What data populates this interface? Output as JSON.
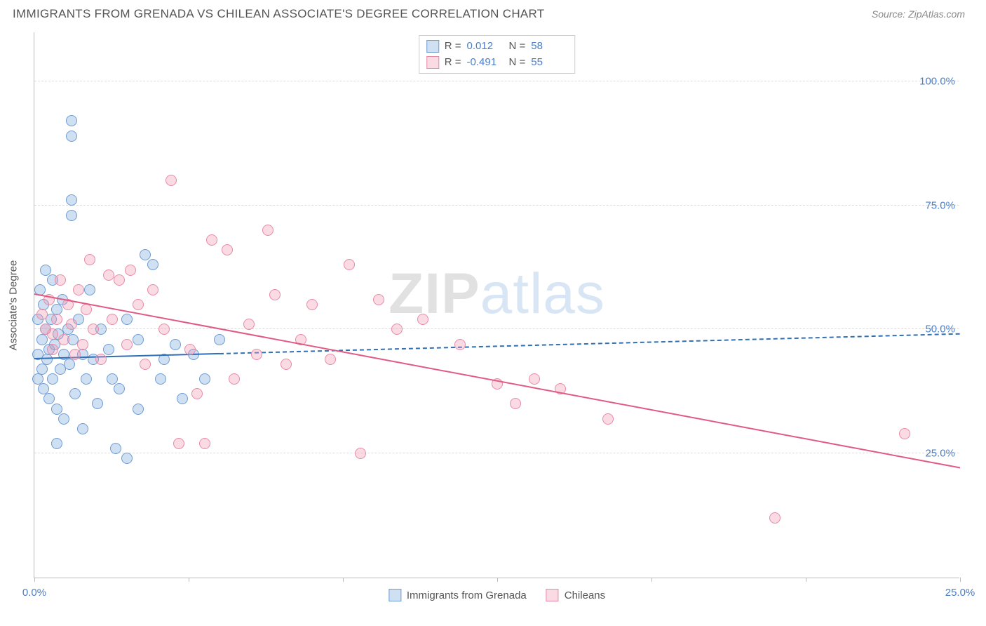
{
  "header": {
    "title": "IMMIGRANTS FROM GRENADA VS CHILEAN ASSOCIATE'S DEGREE CORRELATION CHART",
    "source_label": "Source: ZipAtlas.com"
  },
  "chart": {
    "type": "scatter",
    "y_axis_label": "Associate's Degree",
    "xlim": [
      0,
      25
    ],
    "ylim": [
      0,
      110
    ],
    "x_ticks": [
      0,
      4.17,
      8.33,
      12.5,
      16.67,
      20.83,
      25
    ],
    "x_tick_labels": {
      "0": "0.0%",
      "25": "25.0%"
    },
    "y_ticks": [
      25,
      50,
      75,
      100
    ],
    "y_tick_labels": {
      "25": "25.0%",
      "50": "50.0%",
      "75": "75.0%",
      "100": "100.0%"
    },
    "background_color": "#ffffff",
    "grid_color": "#dddddd",
    "axis_color": "#bbbbbb",
    "tick_label_color": "#4a7ec7",
    "marker_radius": 8,
    "marker_stroke_width": 1.5,
    "series": [
      {
        "name": "Immigrants from Grenada",
        "fill": "rgba(120,165,220,0.35)",
        "stroke": "#6d9bd4",
        "r_value": "0.012",
        "n_value": "58",
        "trend": {
          "y_start": 44,
          "y_end": 49,
          "solid_until_x": 5.0,
          "color": "#2f6fb5",
          "width": 2.2
        },
        "points": [
          [
            0.1,
            52
          ],
          [
            0.1,
            45
          ],
          [
            0.1,
            40
          ],
          [
            0.15,
            58
          ],
          [
            0.2,
            48
          ],
          [
            0.2,
            42
          ],
          [
            0.25,
            55
          ],
          [
            0.25,
            38
          ],
          [
            0.3,
            50
          ],
          [
            0.3,
            62
          ],
          [
            0.35,
            44
          ],
          [
            0.4,
            46
          ],
          [
            0.4,
            36
          ],
          [
            0.45,
            52
          ],
          [
            0.5,
            60
          ],
          [
            0.5,
            40
          ],
          [
            0.55,
            47
          ],
          [
            0.6,
            54
          ],
          [
            0.6,
            34
          ],
          [
            0.65,
            49
          ],
          [
            0.7,
            42
          ],
          [
            0.75,
            56
          ],
          [
            0.8,
            45
          ],
          [
            0.8,
            32
          ],
          [
            0.9,
            50
          ],
          [
            0.95,
            43
          ],
          [
            1.0,
            92
          ],
          [
            1.0,
            89
          ],
          [
            1.0,
            76
          ],
          [
            1.0,
            73
          ],
          [
            1.05,
            48
          ],
          [
            1.1,
            37
          ],
          [
            1.2,
            52
          ],
          [
            1.3,
            45
          ],
          [
            1.4,
            40
          ],
          [
            1.5,
            58
          ],
          [
            1.6,
            44
          ],
          [
            1.7,
            35
          ],
          [
            1.8,
            50
          ],
          [
            2.0,
            46
          ],
          [
            2.1,
            40
          ],
          [
            2.2,
            26
          ],
          [
            2.3,
            38
          ],
          [
            2.5,
            52
          ],
          [
            2.5,
            24
          ],
          [
            2.8,
            48
          ],
          [
            2.8,
            34
          ],
          [
            3.0,
            65
          ],
          [
            3.2,
            63
          ],
          [
            3.4,
            40
          ],
          [
            3.5,
            44
          ],
          [
            3.8,
            47
          ],
          [
            4.0,
            36
          ],
          [
            4.3,
            45
          ],
          [
            4.6,
            40
          ],
          [
            5.0,
            48
          ],
          [
            0.6,
            27
          ],
          [
            1.3,
            30
          ]
        ]
      },
      {
        "name": "Chileans",
        "fill": "rgba(240,150,175,0.35)",
        "stroke": "#e88aa6",
        "r_value": "-0.491",
        "n_value": "55",
        "trend": {
          "y_start": 57,
          "y_end": 22,
          "solid_until_x": 25,
          "color": "#e15a84",
          "width": 2.4
        },
        "points": [
          [
            0.2,
            53
          ],
          [
            0.3,
            50
          ],
          [
            0.4,
            56
          ],
          [
            0.5,
            49
          ],
          [
            0.6,
            52
          ],
          [
            0.7,
            60
          ],
          [
            0.8,
            48
          ],
          [
            0.9,
            55
          ],
          [
            1.0,
            51
          ],
          [
            1.1,
            45
          ],
          [
            1.2,
            58
          ],
          [
            1.3,
            47
          ],
          [
            1.5,
            64
          ],
          [
            1.6,
            50
          ],
          [
            1.8,
            44
          ],
          [
            2.0,
            61
          ],
          [
            2.1,
            52
          ],
          [
            2.3,
            60
          ],
          [
            2.5,
            47
          ],
          [
            2.8,
            55
          ],
          [
            3.0,
            43
          ],
          [
            3.2,
            58
          ],
          [
            3.5,
            50
          ],
          [
            3.7,
            80
          ],
          [
            3.9,
            27
          ],
          [
            4.2,
            46
          ],
          [
            4.4,
            37
          ],
          [
            4.6,
            27
          ],
          [
            4.8,
            68
          ],
          [
            5.2,
            66
          ],
          [
            5.4,
            40
          ],
          [
            5.8,
            51
          ],
          [
            6.0,
            45
          ],
          [
            6.3,
            70
          ],
          [
            6.5,
            57
          ],
          [
            6.8,
            43
          ],
          [
            7.2,
            48
          ],
          [
            7.5,
            55
          ],
          [
            8.0,
            44
          ],
          [
            8.5,
            63
          ],
          [
            8.8,
            25
          ],
          [
            9.3,
            56
          ],
          [
            9.8,
            50
          ],
          [
            10.5,
            52
          ],
          [
            11.5,
            47
          ],
          [
            12.5,
            39
          ],
          [
            13.0,
            35
          ],
          [
            13.5,
            40
          ],
          [
            14.2,
            38
          ],
          [
            15.5,
            32
          ],
          [
            20.0,
            12
          ],
          [
            23.5,
            29
          ],
          [
            1.4,
            54
          ],
          [
            2.6,
            62
          ],
          [
            0.5,
            46
          ]
        ]
      }
    ],
    "legend_top": {
      "r_label": "R =",
      "n_label": "N ="
    },
    "watermark": {
      "part1": "ZIP",
      "part2": "atlas"
    }
  }
}
